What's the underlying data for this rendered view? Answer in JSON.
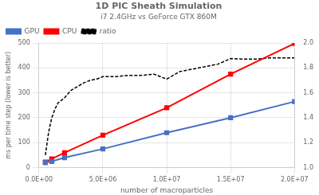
{
  "chart_data": {
    "type": "line",
    "title": "1D PIC Sheath Simulation",
    "subtitle": "i7 2.4GHz vs GeForce GTX 860M",
    "x_label": "number of macroparticles",
    "y_label": "ms per time step (lower is better)",
    "series": [
      {
        "name": "GPU",
        "color": "#4472C4",
        "marker": "square",
        "x": [
          500000,
          1000000,
          2000000,
          5000000,
          10000000,
          15000000,
          20000000
        ],
        "values": [
          20,
          25,
          40,
          75,
          140,
          200,
          265
        ]
      },
      {
        "name": "CPU",
        "color": "#FF0000",
        "marker": "square",
        "x": [
          500000,
          1000000,
          2000000,
          5000000,
          10000000,
          15000000,
          20000000
        ],
        "values": [
          22,
          35,
          60,
          130,
          240,
          375,
          498
        ]
      },
      {
        "name": "ratio",
        "color": "#000000",
        "line_style": "dashed",
        "axis": "y2",
        "x": [
          500000,
          750000,
          1000000,
          1250000,
          1500000,
          2000000,
          2500000,
          3000000,
          3500000,
          4000000,
          4500000,
          5000000,
          6000000,
          7000000,
          8000000,
          9000000,
          10000000,
          11000000,
          12000000,
          13000000,
          14000000,
          15000000,
          16000000,
          17000000,
          18000000,
          19000000,
          20000000
        ],
        "values": [
          1.1,
          1.28,
          1.4,
          1.47,
          1.52,
          1.56,
          1.62,
          1.65,
          1.68,
          1.7,
          1.71,
          1.73,
          1.73,
          1.74,
          1.74,
          1.75,
          1.71,
          1.77,
          1.79,
          1.81,
          1.83,
          1.875,
          1.87,
          1.87,
          1.88,
          1.88,
          1.88
        ]
      }
    ],
    "xlim": [
      0,
      20000000
    ],
    "xticks": [
      {
        "value": 0,
        "label": "0.0E+00"
      },
      {
        "value": 5000000,
        "label": "5.0E+06"
      },
      {
        "value": 10000000,
        "label": "1.0E+07"
      },
      {
        "value": 15000000,
        "label": "1.5E+07"
      },
      {
        "value": 20000000,
        "label": "2.0E+07"
      }
    ],
    "ylim": [
      0,
      500
    ],
    "yticks": [
      0,
      100,
      200,
      300,
      400,
      500
    ],
    "y2lim": [
      1.0,
      2.0
    ],
    "y2ticks": [
      {
        "value": 1.0,
        "label": "1.0"
      },
      1.2,
      1.4,
      1.6,
      1.8,
      {
        "value": 2.0,
        "label": "2.0"
      }
    ],
    "grid": true,
    "legend": "upper left"
  }
}
